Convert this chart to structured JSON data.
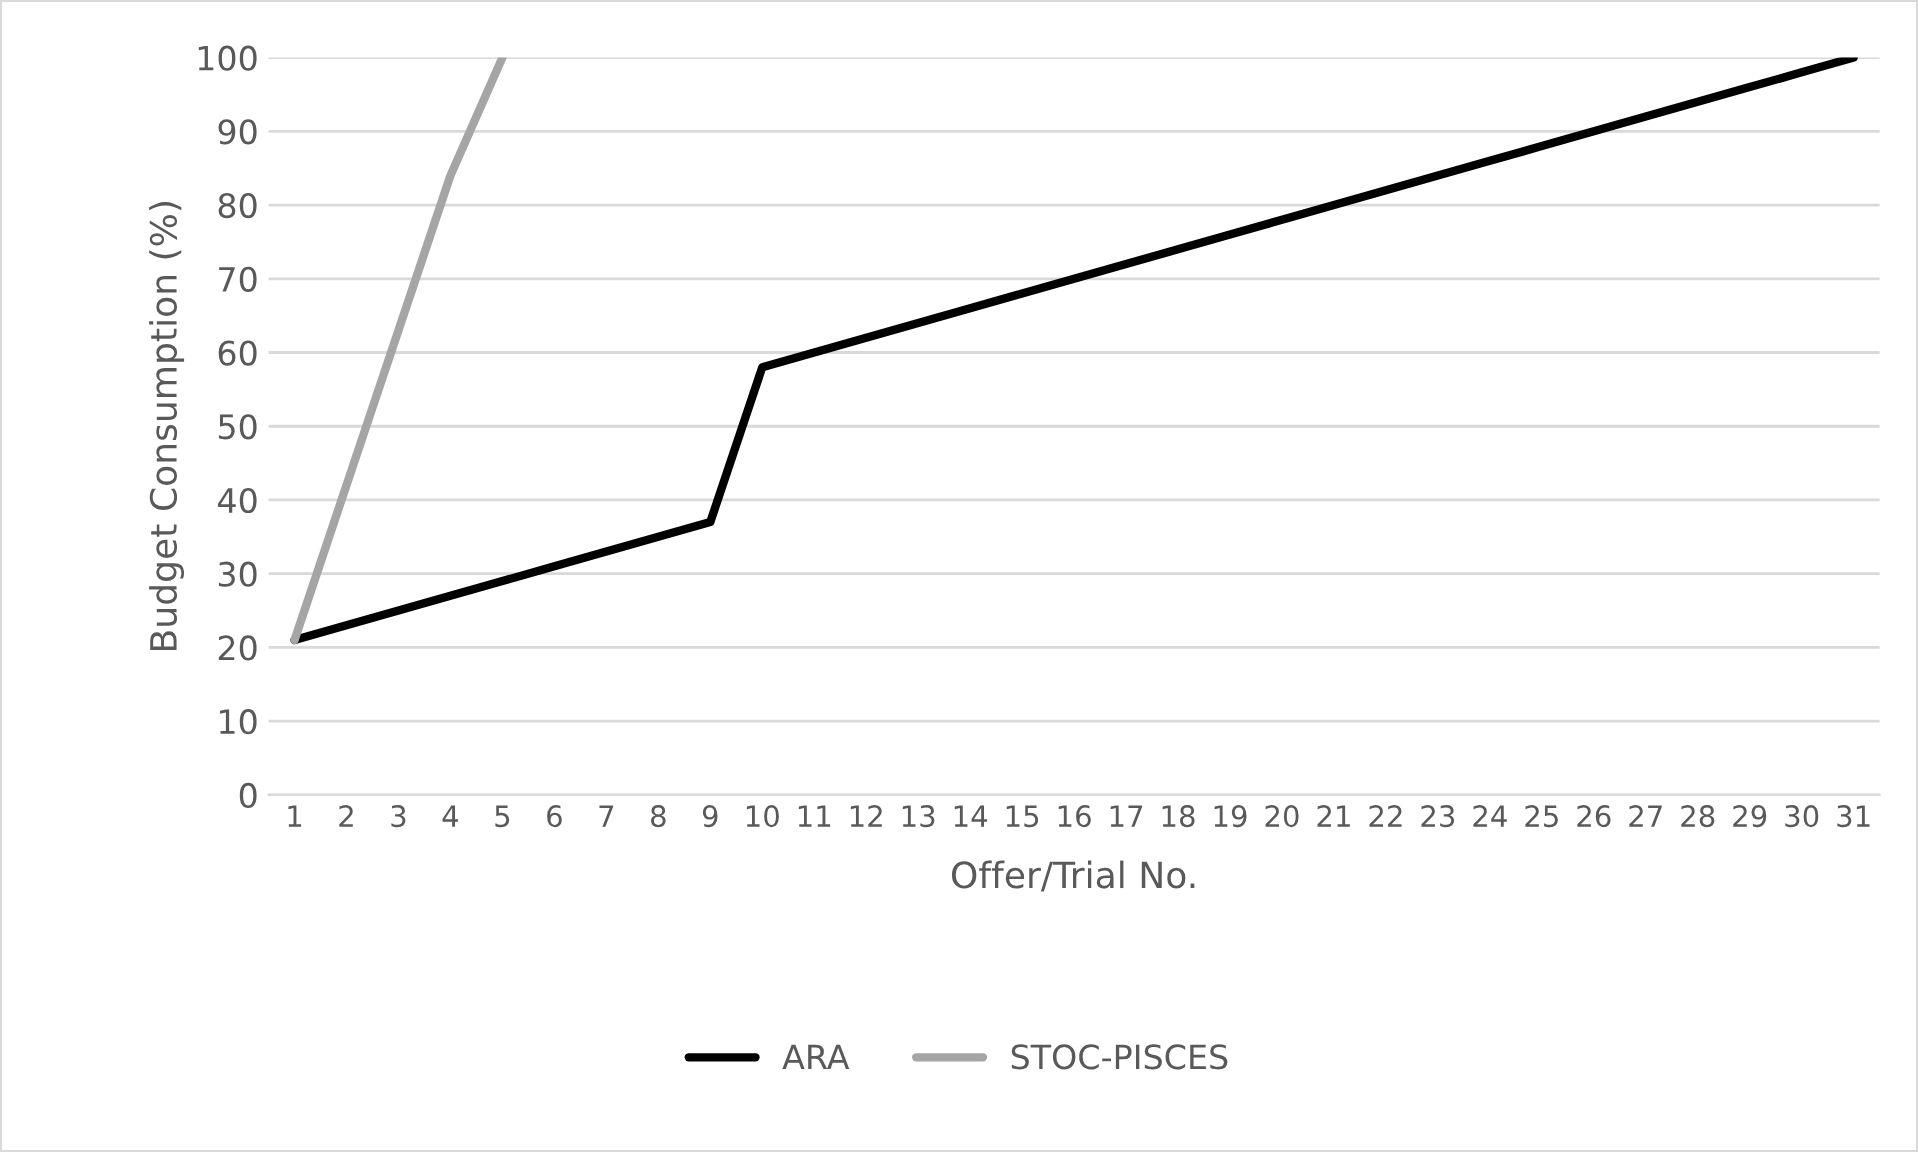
{
  "chart_data": {
    "type": "line",
    "xlabel": "Offer/Trial No.",
    "ylabel": "Budget Consumption (%)",
    "categories": [
      "1",
      "2",
      "3",
      "4",
      "5",
      "6",
      "7",
      "8",
      "9",
      "10",
      "11",
      "12",
      "13",
      "14",
      "15",
      "16",
      "17",
      "18",
      "19",
      "20",
      "21",
      "22",
      "23",
      "24",
      "25",
      "26",
      "27",
      "28",
      "29",
      "30",
      "31"
    ],
    "series": [
      {
        "name": "ARA",
        "color": "#000000",
        "values": [
          21,
          23,
          25,
          27,
          29,
          31,
          33,
          35,
          37,
          58,
          60,
          62,
          64,
          66,
          68,
          70,
          72,
          74,
          76,
          78,
          80,
          82,
          84,
          86,
          88,
          90,
          92,
          94,
          96,
          98,
          100
        ]
      },
      {
        "name": "STOC-PISCES",
        "color": "#a5a5a5",
        "values": [
          21,
          42,
          63,
          84,
          100,
          null,
          null,
          null,
          null,
          null,
          null,
          null,
          null,
          null,
          null,
          null,
          null,
          null,
          null,
          null,
          null,
          null,
          null,
          null,
          null,
          null,
          null,
          null,
          null,
          null,
          null
        ]
      }
    ],
    "ylim": [
      0,
      100
    ],
    "yticks": [
      0,
      10,
      20,
      30,
      40,
      50,
      60,
      70,
      80,
      90,
      100
    ],
    "grid": "y",
    "legend": "bottom",
    "marker": "none",
    "line_style": "solid"
  }
}
